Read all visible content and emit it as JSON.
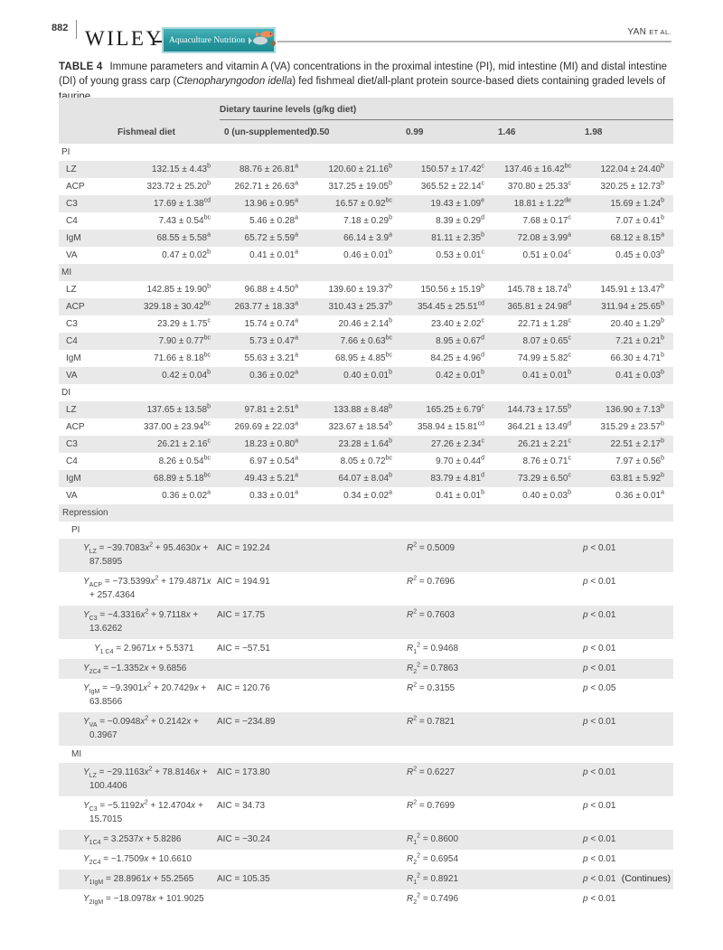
{
  "page": {
    "number": "882",
    "brand": "WILEY",
    "journal": "Aquaculture Nutrition",
    "running_author": "YAN",
    "running_suffix": "et al.",
    "continues": "(Continues)"
  },
  "colors": {
    "journal_badge_teal": "#25969c",
    "badge_border": "#a8d9de",
    "row_stripe": "#e9e9e9",
    "header_gray": "#e4e4e4"
  },
  "icons": {
    "journal_badge_art": "fish-illustration"
  },
  "caption": {
    "label": "TABLE 4",
    "text_before_species": "Immune parameters and vitamin A (VA) concentrations in the proximal intestine (PI), mid intestine (MI) and distal intestine (DI) of young grass carp (",
    "species": "Ctenopharyngodon idella",
    "text_after_species": ") fed fishmeal diet/all-plant protein source-based diets containing graded levels of taurine"
  },
  "table": {
    "spanner": "Dietary taurine levels (g/kg diet)",
    "columns": [
      "Fishmeal diet",
      "0 (un-supplemented)",
      "0.50",
      "0.99",
      "1.46",
      "1.98"
    ],
    "sections": [
      {
        "name": "PI",
        "rows": [
          {
            "param": "LZ",
            "cells": [
              [
                "132.15 ± 4.43",
                "b"
              ],
              [
                "88.76 ± 26.81",
                "a"
              ],
              [
                "120.60 ± 21.16",
                "b"
              ],
              [
                "150.57 ± 17.42",
                "c"
              ],
              [
                "137.46 ± 16.42",
                "bc"
              ],
              [
                "122.04 ± 24.40",
                "b"
              ]
            ]
          },
          {
            "param": "ACP",
            "cells": [
              [
                "323.72 ± 25.20",
                "b"
              ],
              [
                "262.71 ± 26.63",
                "a"
              ],
              [
                "317.25 ± 19.05",
                "b"
              ],
              [
                "365.52 ± 22.14",
                "c"
              ],
              [
                "370.80 ± 25.33",
                "c"
              ],
              [
                "320.25 ± 12.73",
                "b"
              ]
            ]
          },
          {
            "param": "C3",
            "cells": [
              [
                "17.69 ± 1.38",
                "cd"
              ],
              [
                "13.96 ± 0.95",
                "a"
              ],
              [
                "16.57 ± 0.92",
                "bc"
              ],
              [
                "19.43 ± 1.09",
                "e"
              ],
              [
                "18.81 ± 1.22",
                "de"
              ],
              [
                "15.69 ± 1.24",
                "b"
              ]
            ]
          },
          {
            "param": "C4",
            "cells": [
              [
                "7.43 ± 0.54",
                "bc"
              ],
              [
                "5.46 ± 0.28",
                "a"
              ],
              [
                "7.18 ± 0.29",
                "b"
              ],
              [
                "8.39 ± 0.29",
                "d"
              ],
              [
                "7.68 ± 0.17",
                "c"
              ],
              [
                "7.07 ± 0.41",
                "b"
              ]
            ]
          },
          {
            "param": "IgM",
            "cells": [
              [
                "68.55 ± 5.58",
                "a"
              ],
              [
                "65.72 ± 5.59",
                "a"
              ],
              [
                "66.14 ± 3.9",
                "a"
              ],
              [
                "81.11 ± 2.35",
                "b"
              ],
              [
                "72.08 ± 3.99",
                "a"
              ],
              [
                "68.12 ± 8.15",
                "a"
              ]
            ]
          },
          {
            "param": "VA",
            "cells": [
              [
                "0.47 ± 0.02",
                "b"
              ],
              [
                "0.41 ± 0.01",
                "a"
              ],
              [
                "0.46 ± 0.01",
                "b"
              ],
              [
                "0.53 ± 0.01",
                "c"
              ],
              [
                "0.51 ± 0.04",
                "c"
              ],
              [
                "0.45 ± 0.03",
                "b"
              ]
            ]
          }
        ]
      },
      {
        "name": "MI",
        "rows": [
          {
            "param": "LZ",
            "cells": [
              [
                "142.85 ± 19.90",
                "b"
              ],
              [
                "96.88 ± 4.50",
                "a"
              ],
              [
                "139.60 ± 19.37",
                "b"
              ],
              [
                "150.56 ± 15.19",
                "b"
              ],
              [
                "145.78 ± 18.74",
                "b"
              ],
              [
                "145.91 ± 13.47",
                "b"
              ]
            ]
          },
          {
            "param": "ACP",
            "cells": [
              [
                "329.18 ± 30.42",
                "bc"
              ],
              [
                "263.77 ± 18.33",
                "a"
              ],
              [
                "310.43 ± 25.37",
                "b"
              ],
              [
                "354.45 ± 25.51",
                "cd"
              ],
              [
                "365.81 ± 24.98",
                "d"
              ],
              [
                "311.94 ± 25.65",
                "b"
              ]
            ]
          },
          {
            "param": "C3",
            "cells": [
              [
                "23.29 ± 1.75",
                "c"
              ],
              [
                "15.74 ± 0.74",
                "a"
              ],
              [
                "20.46 ± 2.14",
                "b"
              ],
              [
                "23.40 ± 2.02",
                "c"
              ],
              [
                "22.71 ± 1.28",
                "c"
              ],
              [
                "20.40 ± 1.29",
                "b"
              ]
            ]
          },
          {
            "param": "C4",
            "cells": [
              [
                "7.90 ± 0.77",
                "bc"
              ],
              [
                "5.73 ± 0.47",
                "a"
              ],
              [
                "7.66 ± 0.63",
                "bc"
              ],
              [
                "8.95 ± 0.67",
                "d"
              ],
              [
                "8.07 ± 0.65",
                "c"
              ],
              [
                "7.21 ± 0.21",
                "b"
              ]
            ]
          },
          {
            "param": "IgM",
            "cells": [
              [
                "71.66 ± 8.18",
                "bc"
              ],
              [
                "55.63 ± 3.21",
                "a"
              ],
              [
                "68.95 ± 4.85",
                "bc"
              ],
              [
                "84.25 ± 4.96",
                "d"
              ],
              [
                "74.99 ± 5.82",
                "c"
              ],
              [
                "66.30 ± 4.71",
                "b"
              ]
            ]
          },
          {
            "param": "VA",
            "cells": [
              [
                "0.42 ± 0.04",
                "b"
              ],
              [
                "0.36 ± 0.02",
                "a"
              ],
              [
                "0.40 ± 0.01",
                "b"
              ],
              [
                "0.42 ± 0.01",
                "b"
              ],
              [
                "0.41 ± 0.01",
                "b"
              ],
              [
                "0.41 ± 0.03",
                "b"
              ]
            ]
          }
        ]
      },
      {
        "name": "DI",
        "rows": [
          {
            "param": "LZ",
            "cells": [
              [
                "137.65 ± 13.58",
                "b"
              ],
              [
                "97.81 ± 2.51",
                "a"
              ],
              [
                "133.88 ± 8.48",
                "b"
              ],
              [
                "165.25 ± 6.79",
                "c"
              ],
              [
                "144.73 ± 17.55",
                "b"
              ],
              [
                "136.90 ± 7.13",
                "b"
              ]
            ]
          },
          {
            "param": "ACP",
            "cells": [
              [
                "337.00 ± 23.94",
                "bc"
              ],
              [
                "269.69 ± 22.03",
                "a"
              ],
              [
                "323.67 ± 18.54",
                "b"
              ],
              [
                "358.94 ± 15.81",
                "cd"
              ],
              [
                "364.21 ± 13.49",
                "d"
              ],
              [
                "315.29 ± 23.57",
                "b"
              ]
            ]
          },
          {
            "param": "C3",
            "cells": [
              [
                "26.21 ± 2.16",
                "c"
              ],
              [
                "18.23 ± 0.80",
                "a"
              ],
              [
                "23.28 ± 1.64",
                "b"
              ],
              [
                "27.26 ± 2.34",
                "c"
              ],
              [
                "26.21 ± 2.21",
                "c"
              ],
              [
                "22.51 ± 2.17",
                "b"
              ]
            ]
          },
          {
            "param": "C4",
            "cells": [
              [
                "8.26 ± 0.54",
                "bc"
              ],
              [
                "6.97 ± 0.54",
                "a"
              ],
              [
                "8.05 ± 0.72",
                "bc"
              ],
              [
                "9.70 ± 0.44",
                "d"
              ],
              [
                "8.76 ± 0.71",
                "c"
              ],
              [
                "7.97 ± 0.56",
                "b"
              ]
            ]
          },
          {
            "param": "IgM",
            "cells": [
              [
                "68.89 ± 5.18",
                "bc"
              ],
              [
                "49.43 ± 5.21",
                "a"
              ],
              [
                "64.07 ± 8.04",
                "b"
              ],
              [
                "83.79 ± 4.81",
                "d"
              ],
              [
                "73.29 ± 6.50",
                "c"
              ],
              [
                "63.81 ± 5.92",
                "b"
              ]
            ]
          },
          {
            "param": "VA",
            "cells": [
              [
                "0.36 ± 0.02",
                "a"
              ],
              [
                "0.33 ± 0.01",
                "a"
              ],
              [
                "0.34 ± 0.02",
                "a"
              ],
              [
                "0.41 ± 0.01",
                "b"
              ],
              [
                "0.40 ± 0.03",
                "b"
              ],
              [
                "0.36 ± 0.01",
                "a"
              ]
            ]
          }
        ]
      }
    ],
    "regression": {
      "title": "Repression",
      "sections": [
        {
          "name": "PI",
          "rows": [
            {
              "eq": "*Y*_{LZ} = −39.7083*x*^{2} + 95.4630*x* + 87.5895",
              "aic": "AIC = 192.24",
              "r2": "*R*^{2} = 0.5009",
              "p": "*p* < 0.01"
            },
            {
              "eq": "*Y*_{ACP} = −73.5399*x*^{2} + 179.4871*x* + 257.4364",
              "aic": "AIC = 194.91",
              "r2": "*R*^{2} = 0.7696",
              "p": "*p* < 0.01"
            },
            {
              "eq": "*Y*_{C3} = −4.3316*x*^{2} + 9.7118*x* + 13.6262",
              "aic": "AIC = 17.75",
              "r2": "*R*^{2} = 0.7603",
              "p": "*p* < 0.01"
            },
            {
              "eq": "*Y*_{1 C4} = 2.9671*x* + 5.5371",
              "aic": "AIC = −57.51",
              "r2": "*R*_{1}^{2} = 0.9468",
              "p": "*p* < 0.01",
              "indent": true
            },
            {
              "eq": "*Y*_{2C4} = −1.3352*x* + 9.6856",
              "aic": "",
              "r2": "*R*_{2}^{2} = 0.7863",
              "p": "*p* < 0.01"
            },
            {
              "eq": "*Y*_{IgM} = −9.3901*x*^{2} + 20.7429*x* + 63.8566",
              "aic": "AIC = 120.76",
              "r2": "*R*^{2} = 0.3155",
              "p": "*p* < 0.05"
            },
            {
              "eq": "*Y*_{VA} = −0.0948*x*^{2} + 0.2142*x* + 0.3967",
              "aic": "AIC = −234.89",
              "r2": "*R*^{2} = 0.7821",
              "p": "*p* < 0.01"
            }
          ]
        },
        {
          "name": "MI",
          "rows": [
            {
              "eq": "*Y*_{LZ} = −29.1163*x*^{2} + 78.8146*x* + 100.4406",
              "aic": "AIC = 173.80",
              "r2": "*R*^{2} = 0.6227",
              "p": "*p* < 0.01"
            },
            {
              "eq": "*Y*_{C3} = −5.1192*x*^{2} + 12.4704*x* + 15.7015",
              "aic": "AIC = 34.73",
              "r2": "*R*^{2} = 0.7699",
              "p": "*p* < 0.01"
            },
            {
              "eq": "*Y*_{1C4} = 3.2537*x* + 5.8286",
              "aic": "AIC = −30.24",
              "r2": "*R*_{1}^{2} = 0.8600",
              "p": "*p* < 0.01"
            },
            {
              "eq": "*Y*_{2C4} = −1.7509*x* + 10.6610",
              "aic": "",
              "r2": "*R*_{2}^{2} = 0.6954",
              "p": "*p* < 0.01"
            },
            {
              "eq": "*Y*_{1IgM} = 28.8961*x* + 55.2565",
              "aic": "AIC = 105.35",
              "r2": "*R*_{1}^{2} = 0.8921",
              "p": "*p* < 0.01"
            },
            {
              "eq": "*Y*_{2IgM} = −18.0978*x* + 101.9025",
              "aic": "",
              "r2": "*R*_{2}^{2} = 0.7496",
              "p": "*p* < 0.01"
            }
          ]
        }
      ]
    }
  }
}
